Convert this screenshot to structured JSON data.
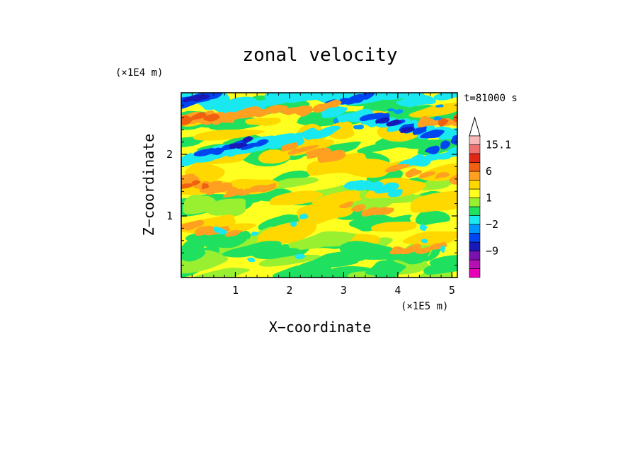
{
  "chart_data": {
    "type": "heatmap",
    "title": "zonal velocity",
    "xlabel": "X−coordinate",
    "ylabel": "Z−coordinate",
    "x_multiplier": "(×1E5 m)",
    "y_multiplier": "(×1E4 m)",
    "time_label": "t=81000 s",
    "xlim": [
      0.0,
      5.1
    ],
    "ylim": [
      0.0,
      3.0
    ],
    "x_ticks": [
      1,
      2,
      3,
      4,
      5
    ],
    "y_ticks": [
      1,
      2
    ],
    "colorbar": {
      "labels": [
        "15.1",
        "6",
        "1",
        "−2",
        "−9"
      ],
      "label_values": [
        15.1,
        6,
        1,
        -2,
        -9
      ],
      "levels": [
        -15,
        -12,
        -9,
        -6,
        -3,
        -2,
        -1,
        0,
        1,
        2,
        3,
        6,
        9,
        12,
        15.1
      ],
      "colors": [
        "#e800b8",
        "#b410b4",
        "#7a12b0",
        "#1818b8",
        "#0046f0",
        "#0096ff",
        "#19e8f0",
        "#20e060",
        "#98f030",
        "#ffff20",
        "#ffd800",
        "#ffa020",
        "#f06010",
        "#e02818",
        "#f07070",
        "#f8b8b8"
      ]
    }
  }
}
